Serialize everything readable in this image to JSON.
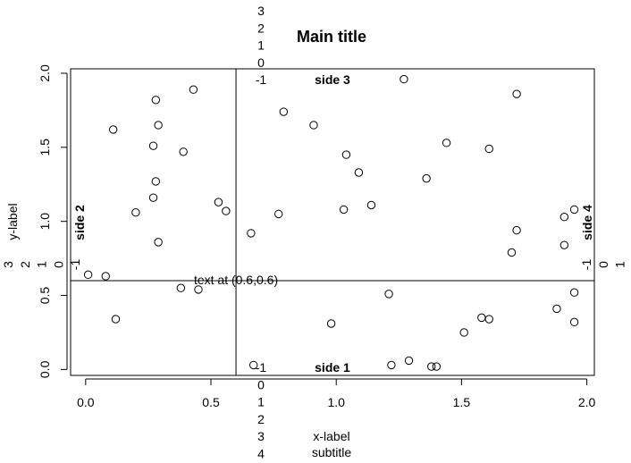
{
  "chart_data": {
    "type": "scatter",
    "title": "Main title",
    "subtitle": "subtitle",
    "xlabel": "x-label",
    "ylabel": "y-label",
    "xlim": [
      -0.06,
      2.03
    ],
    "ylim": [
      -0.04,
      2.03
    ],
    "x_ticks": [
      "0.0",
      "0.5",
      "1.0",
      "1.5",
      "2.0"
    ],
    "y_ticks": [
      "0.0",
      "0.5",
      "1.0",
      "1.5",
      "2.0"
    ],
    "grid": false,
    "reference_lines": {
      "vertical_x": 0.6,
      "horizontal_y": 0.6
    },
    "side_labels": {
      "side1": "side 1",
      "side2": "side 2",
      "side3": "side 3",
      "side4": "side 4"
    },
    "margin_line_numbers": {
      "top": [
        "3",
        "2",
        "1",
        "0",
        "-1"
      ],
      "bottom": [
        "-1",
        "0",
        "1",
        "2",
        "3",
        "4"
      ],
      "left": [
        "3",
        "2",
        "1",
        "0",
        "-1"
      ],
      "right": [
        "-1",
        "0",
        "1"
      ]
    },
    "annotation": {
      "text": "text at (0.6,0.6)",
      "x": 0.6,
      "y": 0.6
    },
    "points": [
      {
        "x": 0.01,
        "y": 0.64
      },
      {
        "x": 0.08,
        "y": 0.63
      },
      {
        "x": 0.11,
        "y": 1.62
      },
      {
        "x": 0.12,
        "y": 0.34
      },
      {
        "x": 0.2,
        "y": 1.06
      },
      {
        "x": 0.27,
        "y": 1.51
      },
      {
        "x": 0.27,
        "y": 1.16
      },
      {
        "x": 0.28,
        "y": 1.82
      },
      {
        "x": 0.28,
        "y": 1.27
      },
      {
        "x": 0.29,
        "y": 1.65
      },
      {
        "x": 0.29,
        "y": 0.86
      },
      {
        "x": 0.38,
        "y": 0.55
      },
      {
        "x": 0.39,
        "y": 1.47
      },
      {
        "x": 0.43,
        "y": 1.89
      },
      {
        "x": 0.45,
        "y": 0.54
      },
      {
        "x": 0.53,
        "y": 1.13
      },
      {
        "x": 0.56,
        "y": 1.07
      },
      {
        "x": 0.66,
        "y": 0.92
      },
      {
        "x": 0.67,
        "y": 0.03
      },
      {
        "x": 0.77,
        "y": 1.05
      },
      {
        "x": 0.79,
        "y": 1.74
      },
      {
        "x": 0.91,
        "y": 1.65
      },
      {
        "x": 0.98,
        "y": 0.31
      },
      {
        "x": 1.03,
        "y": 1.08
      },
      {
        "x": 1.04,
        "y": 1.45
      },
      {
        "x": 1.09,
        "y": 1.33
      },
      {
        "x": 1.14,
        "y": 1.11
      },
      {
        "x": 1.21,
        "y": 0.51
      },
      {
        "x": 1.22,
        "y": 0.03
      },
      {
        "x": 1.27,
        "y": 1.96
      },
      {
        "x": 1.29,
        "y": 0.06
      },
      {
        "x": 1.36,
        "y": 1.29
      },
      {
        "x": 1.38,
        "y": 0.02
      },
      {
        "x": 1.4,
        "y": 0.02
      },
      {
        "x": 1.44,
        "y": 1.53
      },
      {
        "x": 1.51,
        "y": 0.25
      },
      {
        "x": 1.58,
        "y": 0.35
      },
      {
        "x": 1.61,
        "y": 0.34
      },
      {
        "x": 1.61,
        "y": 1.49
      },
      {
        "x": 1.7,
        "y": 0.79
      },
      {
        "x": 1.72,
        "y": 1.86
      },
      {
        "x": 1.72,
        "y": 0.94
      },
      {
        "x": 1.88,
        "y": 0.41
      },
      {
        "x": 1.91,
        "y": 1.03
      },
      {
        "x": 1.91,
        "y": 0.84
      },
      {
        "x": 1.95,
        "y": 1.08
      },
      {
        "x": 1.95,
        "y": 0.32
      },
      {
        "x": 1.95,
        "y": 0.52
      }
    ]
  }
}
